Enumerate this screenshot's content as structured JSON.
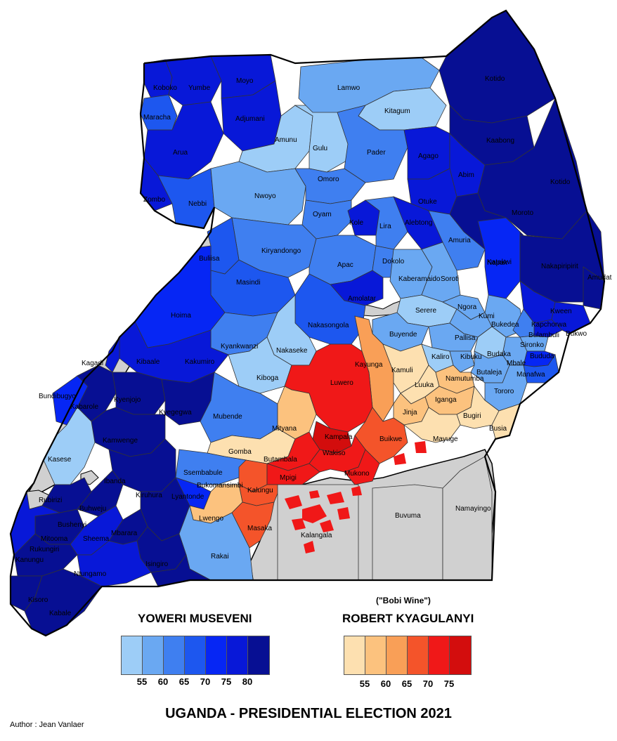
{
  "title": "UGANDA - PRESIDENTIAL ELECTION 2021",
  "author": "Author : Jean Vanlaer",
  "legend": {
    "museveni": {
      "name": "YOWERI MUSEVENI",
      "colors": [
        "#9dcdf7",
        "#6aa8f2",
        "#3f7ff0",
        "#1d57ef",
        "#0626f4",
        "#0818d8",
        "#070f93"
      ],
      "ticks": [
        "55",
        "60",
        "65",
        "70",
        "75",
        "80"
      ]
    },
    "kyagulanyi": {
      "nickname": "(\"Bobi Wine\")",
      "name": "ROBERT KYAGULANYI",
      "colors": [
        "#fde0b0",
        "#fcc27e",
        "#f99f57",
        "#f4542a",
        "#f01818",
        "#d30d0d"
      ],
      "ticks": [
        "55",
        "60",
        "65",
        "70",
        "75"
      ]
    }
  },
  "districts": [
    {
      "name": "Koboko",
      "color": "#0818d8"
    },
    {
      "name": "Yumbe",
      "color": "#0818d8"
    },
    {
      "name": "Moyo",
      "color": "#0818d8"
    },
    {
      "name": "Maracha",
      "color": "#1d57ef"
    },
    {
      "name": "Adjumani",
      "color": "#0818d8"
    },
    {
      "name": "Arua",
      "color": "#0818d8"
    },
    {
      "name": "Zombo",
      "color": "#0818d8"
    },
    {
      "name": "Nebbi",
      "color": "#1d57ef"
    },
    {
      "name": "Lamwo",
      "color": "#6aa8f2"
    },
    {
      "name": "Kitagum",
      "color": "#9dcdf7"
    },
    {
      "name": "Amunu",
      "color": "#9dcdf7"
    },
    {
      "name": "Gulu",
      "color": "#9dcdf7"
    },
    {
      "name": "Pader",
      "color": "#3f7ff0"
    },
    {
      "name": "Kotido",
      "color": "#070f93"
    },
    {
      "name": "Kaabong",
      "color": "#070f93"
    },
    {
      "name": "Kotido",
      "color": "#070f93"
    },
    {
      "name": "Agago",
      "color": "#0818d8"
    },
    {
      "name": "Abim",
      "color": "#0818d8"
    },
    {
      "name": "Moroto",
      "color": "#070f93"
    },
    {
      "name": "Napak",
      "color": "#070f93"
    },
    {
      "name": "Otuke",
      "color": "#0818d8"
    },
    {
      "name": "Nwoyo",
      "color": "#6aa8f2"
    },
    {
      "name": "Omoro",
      "color": "#3f7ff0"
    },
    {
      "name": "Oyam",
      "color": "#3f7ff0"
    },
    {
      "name": "Kole",
      "color": "#0818d8"
    },
    {
      "name": "Lira",
      "color": "#3f7ff0"
    },
    {
      "name": "Alebtong",
      "color": "#0818d8"
    },
    {
      "name": "Amuria",
      "color": "#3f7ff0"
    },
    {
      "name": "Katakwi",
      "color": "#0626f4"
    },
    {
      "name": "Nakapiripirit",
      "color": "#070f93"
    },
    {
      "name": "Amudat",
      "color": "#070f93"
    },
    {
      "name": "Kiryandongo",
      "color": "#3f7ff0"
    },
    {
      "name": "Apac",
      "color": "#3f7ff0"
    },
    {
      "name": "Dokolo",
      "color": "#3f7ff0"
    },
    {
      "name": "Kaberamaido",
      "color": "#6aa8f2"
    },
    {
      "name": "Soroti",
      "color": "#6aa8f2"
    },
    {
      "name": "Buliisa",
      "color": "#1d57ef"
    },
    {
      "name": "Masindi",
      "color": "#1d57ef"
    },
    {
      "name": "Amolatar",
      "color": "#0818d8"
    },
    {
      "name": "Serere",
      "color": "#9dcdf7"
    },
    {
      "name": "Ngora",
      "color": "#6aa8f2"
    },
    {
      "name": "Kumi",
      "color": "#6aa8f2"
    },
    {
      "name": "Bukedea",
      "color": "#6aa8f2"
    },
    {
      "name": "Kween",
      "color": "#0818d8"
    },
    {
      "name": "Kapchorwa",
      "color": "#0818d8"
    },
    {
      "name": "Bukwo",
      "color": "#0818d8"
    },
    {
      "name": "Bulambuli",
      "color": "#3f7ff0"
    },
    {
      "name": "Sironko",
      "color": "#6aa8f2"
    },
    {
      "name": "Hoima",
      "color": "#0626f4"
    },
    {
      "name": "Nakasongola",
      "color": "#1d57ef"
    },
    {
      "name": "Buyende",
      "color": "#6aa8f2"
    },
    {
      "name": "Pallisa",
      "color": "#6aa8f2"
    },
    {
      "name": "Budaka",
      "color": "#9dcdf7"
    },
    {
      "name": "Mbale",
      "color": "#6aa8f2"
    },
    {
      "name": "Bududa",
      "color": "#0626f4"
    },
    {
      "name": "Manafwa",
      "color": "#1d57ef"
    },
    {
      "name": "Kyankwanzi",
      "color": "#3f7ff0"
    },
    {
      "name": "Nakaseke",
      "color": "#9dcdf7"
    },
    {
      "name": "Kiboga",
      "color": "#9dcdf7"
    },
    {
      "name": "Kayunga",
      "color": "#f99f57"
    },
    {
      "name": "Kamuli",
      "color": "#fde0b0"
    },
    {
      "name": "Kaliro",
      "color": "#9dcdf7"
    },
    {
      "name": "Kibuku",
      "color": "#6aa8f2"
    },
    {
      "name": "Butaleja",
      "color": "#6aa8f2"
    },
    {
      "name": "Tororo",
      "color": "#6aa8f2"
    },
    {
      "name": "Kibaale",
      "color": "#0818d8"
    },
    {
      "name": "Kakumiro",
      "color": "#0818d8"
    },
    {
      "name": "Kagadi",
      "color": "#0818d8"
    },
    {
      "name": "Luwero",
      "color": "#f01818"
    },
    {
      "name": "Luuka",
      "color": "#fde0b0"
    },
    {
      "name": "Namutumba",
      "color": "#fcc27e"
    },
    {
      "name": "Bundibugyo",
      "color": "#0626f4"
    },
    {
      "name": "Kabarole",
      "color": "#070f93"
    },
    {
      "name": "Kyenjojo",
      "color": "#070f93"
    },
    {
      "name": "Kyegegwa",
      "color": "#070f93"
    },
    {
      "name": "Mubende",
      "color": "#3f7ff0"
    },
    {
      "name": "Iganga",
      "color": "#fcc27e"
    },
    {
      "name": "Bugiri",
      "color": "#fde0b0"
    },
    {
      "name": "Busia",
      "color": "#fde0b0"
    },
    {
      "name": "Mityana",
      "color": "#fcc27e"
    },
    {
      "name": "Jinja",
      "color": "#fcc27e"
    },
    {
      "name": "Kamwenge",
      "color": "#070f93"
    },
    {
      "name": "Kasese",
      "color": "#9dcdf7"
    },
    {
      "name": "Gomba",
      "color": "#fde0b0"
    },
    {
      "name": "Kampala",
      "color": "#d30d0d"
    },
    {
      "name": "Buikwe",
      "color": "#f4542a"
    },
    {
      "name": "Mayuge",
      "color": "#fde0b0"
    },
    {
      "name": "Butambala",
      "color": "#f01818"
    },
    {
      "name": "Wakiso",
      "color": "#f01818"
    },
    {
      "name": "Ssembabule",
      "color": "#3f7ff0"
    },
    {
      "name": "Bukomansimbi",
      "color": "#f4542a"
    },
    {
      "name": "Mpigi",
      "color": "#f01818"
    },
    {
      "name": "Mukono",
      "color": "#f01818"
    },
    {
      "name": "Ibanda",
      "color": "#070f93"
    },
    {
      "name": "Kiruhura",
      "color": "#070f93"
    },
    {
      "name": "Lyantonde",
      "color": "#0626f4"
    },
    {
      "name": "Kalungu",
      "color": "#f4542a"
    },
    {
      "name": "Rubirizi",
      "color": "#070f93"
    },
    {
      "name": "Buhweju",
      "color": "#070f93"
    },
    {
      "name": "Buvuma",
      "color": "#d0d0d0"
    },
    {
      "name": "Namayingo",
      "color": "#d0d0d0"
    },
    {
      "name": "Bushenyi",
      "color": "#070f93"
    },
    {
      "name": "Mitooma",
      "color": "#0818d8"
    },
    {
      "name": "Sheema",
      "color": "#070f93"
    },
    {
      "name": "Mbarara",
      "color": "#070f93"
    },
    {
      "name": "Lwengo",
      "color": "#fcc27e"
    },
    {
      "name": "Masaka",
      "color": "#f4542a"
    },
    {
      "name": "Kalangala",
      "color": "#f01818"
    },
    {
      "name": "Kanungu",
      "color": "#070f93"
    },
    {
      "name": "Rukungiri",
      "color": "#0818d8"
    },
    {
      "name": "Ntungamo",
      "color": "#0818d8"
    },
    {
      "name": "Isingiro",
      "color": "#070f93"
    },
    {
      "name": "Rakai",
      "color": "#6aa8f2"
    },
    {
      "name": "Kisoro",
      "color": "#070f93"
    },
    {
      "name": "Kabale",
      "color": "#070f93"
    }
  ]
}
